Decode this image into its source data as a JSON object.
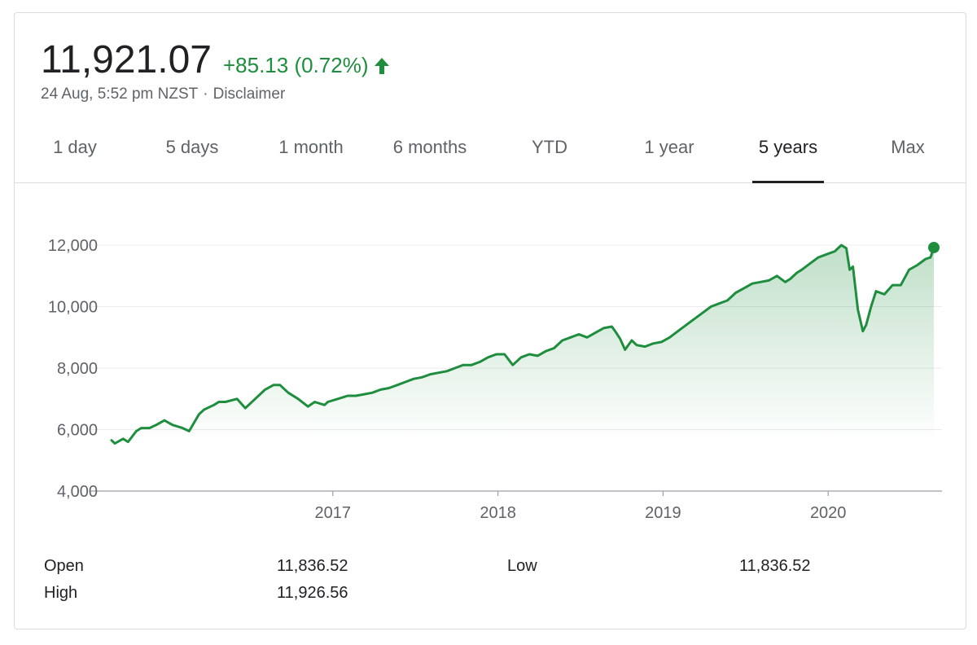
{
  "header": {
    "price": "11,921.07",
    "change": "+85.13 (0.72%)",
    "timestamp": "24 Aug, 5:52 pm NZST",
    "separator": "·",
    "disclaimer": "Disclaimer",
    "arrow_icon": "arrow-up-icon",
    "accent_color": "#1e8e3e"
  },
  "tabs": [
    {
      "label": "1 day",
      "active": false
    },
    {
      "label": "5 days",
      "active": false
    },
    {
      "label": "1 month",
      "active": false
    },
    {
      "label": "6 months",
      "active": false
    },
    {
      "label": "YTD",
      "active": false
    },
    {
      "label": "1 year",
      "active": false
    },
    {
      "label": "5 years",
      "active": true
    },
    {
      "label": "Max",
      "active": false
    }
  ],
  "chart_data": {
    "type": "area",
    "title": "",
    "xlabel": "",
    "ylabel": "",
    "xlim": [
      2015.66,
      2020.64
    ],
    "ylim": [
      4000,
      12000
    ],
    "yticks": [
      4000,
      6000,
      8000,
      10000,
      12000
    ],
    "ytick_labels": [
      "4,000",
      "6,000",
      "8,000",
      "10,000",
      "12,000"
    ],
    "xticks": [
      2017,
      2018,
      2019,
      2020
    ],
    "xtick_labels": [
      "2017",
      "2018",
      "2019",
      "2020"
    ],
    "grid": true,
    "line_color": "#1e8e3e",
    "fill_color": "#1e8e3e",
    "series": [
      {
        "x": [
          2015.66,
          2015.68,
          2015.73,
          2015.76,
          2015.81,
          2015.84,
          2015.89,
          2015.93,
          2015.98,
          2016.03,
          2016.09,
          2016.13,
          2016.19,
          2016.22,
          2016.28,
          2016.31,
          2016.35,
          2016.42,
          2016.47,
          2016.53,
          2016.59,
          2016.64,
          2016.68,
          2016.73,
          2016.79,
          2016.85,
          2016.89,
          2016.95,
          2016.97,
          2017.03,
          2017.09,
          2017.14,
          2017.19,
          2017.24,
          2017.29,
          2017.34,
          2017.39,
          2017.44,
          2017.49,
          2017.54,
          2017.59,
          2017.64,
          2017.69,
          2017.74,
          2017.79,
          2017.84,
          2017.89,
          2017.94,
          2017.99,
          2018.04,
          2018.09,
          2018.14,
          2018.19,
          2018.24,
          2018.29,
          2018.34,
          2018.39,
          2018.44,
          2018.49,
          2018.54,
          2018.59,
          2018.64,
          2018.69,
          2018.71,
          2018.74,
          2018.77,
          2018.81,
          2018.84,
          2018.89,
          2018.94,
          2018.99,
          2019.04,
          2019.09,
          2019.14,
          2019.19,
          2019.24,
          2019.29,
          2019.34,
          2019.39,
          2019.44,
          2019.49,
          2019.54,
          2019.59,
          2019.64,
          2019.69,
          2019.74,
          2019.77,
          2019.81,
          2019.84,
          2019.89,
          2019.94,
          2019.99,
          2020.04,
          2020.08,
          2020.11,
          2020.13,
          2020.15,
          2020.18,
          2020.21,
          2020.23,
          2020.26,
          2020.29,
          2020.34,
          2020.39,
          2020.44,
          2020.49,
          2020.54,
          2020.59,
          2020.62,
          2020.64
        ],
        "y": [
          5650,
          5550,
          5700,
          5600,
          5950,
          6050,
          6050,
          6150,
          6300,
          6150,
          6050,
          5950,
          6500,
          6650,
          6800,
          6900,
          6900,
          7000,
          6700,
          7000,
          7300,
          7450,
          7450,
          7200,
          7000,
          6750,
          6900,
          6800,
          6900,
          7000,
          7100,
          7100,
          7150,
          7200,
          7300,
          7350,
          7450,
          7550,
          7650,
          7700,
          7800,
          7850,
          7900,
          8000,
          8100,
          8100,
          8200,
          8350,
          8450,
          8450,
          8100,
          8350,
          8450,
          8400,
          8550,
          8650,
          8900,
          9000,
          9100,
          9000,
          9150,
          9300,
          9350,
          9200,
          8950,
          8600,
          8900,
          8750,
          8700,
          8800,
          8850,
          9000,
          9200,
          9400,
          9600,
          9800,
          10000,
          10100,
          10200,
          10450,
          10600,
          10750,
          10800,
          10850,
          11000,
          10800,
          10900,
          11100,
          11200,
          11400,
          11600,
          11700,
          11800,
          12000,
          11900,
          11200,
          11300,
          9900,
          9200,
          9400,
          10000,
          10500,
          10400,
          10700,
          10700,
          11200,
          11350,
          11550,
          11600,
          11921
        ]
      }
    ],
    "last_point": {
      "x": 2020.64,
      "y": 11921
    }
  },
  "stats": {
    "open_label": "Open",
    "open_value": "11,836.52",
    "high_label": "High",
    "high_value": "11,926.56",
    "low_label": "Low",
    "low_value": "11,836.52"
  }
}
